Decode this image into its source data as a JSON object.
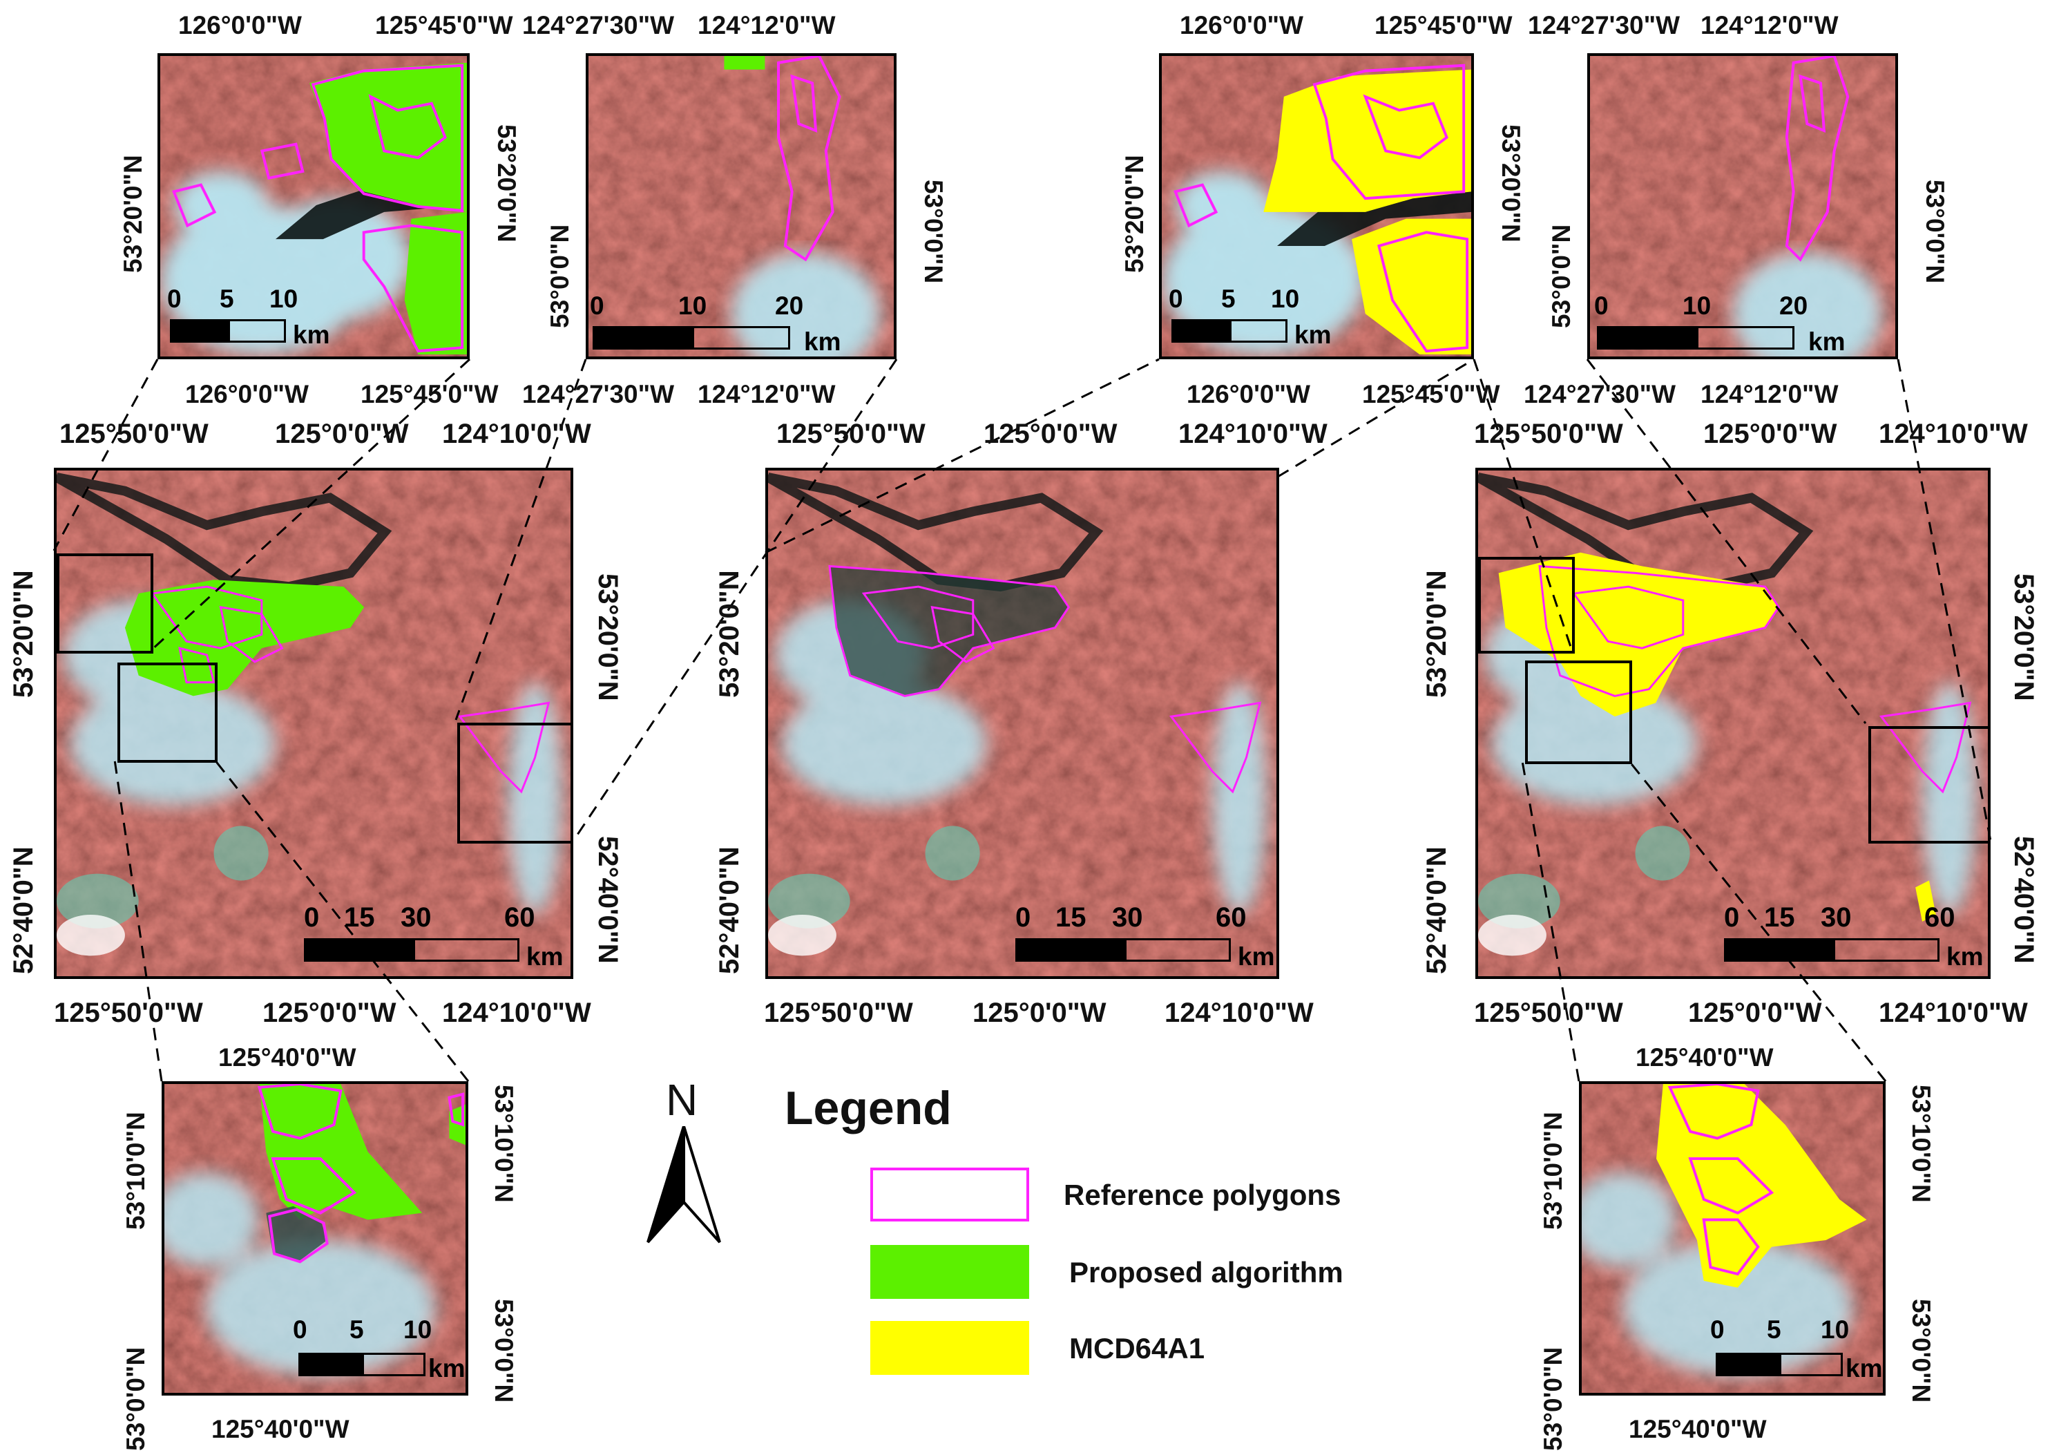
{
  "colors": {
    "reference": "#ff22ff",
    "proposed": "#5cf000",
    "mcd64a1": "#ffff00",
    "terrain": "#8a3a32",
    "smoke": "#aee3ef",
    "water": "#0b1414"
  },
  "legend": {
    "title": "Legend",
    "items": [
      {
        "label": "Reference polygons",
        "swatch": "outline"
      },
      {
        "label": "Proposed algorithm",
        "swatch": "fill-green"
      },
      {
        "label": "MCD64A1",
        "swatch": "fill-yellow"
      }
    ]
  },
  "north_arrow": {
    "label": "N"
  },
  "units": "km",
  "insets": {
    "top_left_a": {
      "top": [
        "126°0'0\"W",
        "125°45'0\"W"
      ],
      "bottom": [
        "126°0'0\"W",
        "125°45'0\"W"
      ],
      "left": "53°20'0\"N",
      "right": "53°20'0\"N",
      "scale": [
        "0",
        "5",
        "10"
      ]
    },
    "top_left_b": {
      "top": [
        "124°27'30\"W",
        "124°12'0\"W"
      ],
      "bottom": [
        "124°27'30\"W",
        "124°12'0\"W"
      ],
      "left": "53°0'0\"N",
      "right": "53°0'0\"N",
      "scale": [
        "0",
        "10",
        "20"
      ]
    },
    "top_right_a": {
      "top": [
        "126°0'0\"W",
        "125°45'0\"W"
      ],
      "bottom": [
        "126°0'0\"W",
        "125°45'0\"W"
      ],
      "left": "53°20'0\"N",
      "right": "53°20'0\"N",
      "scale": [
        "0",
        "5",
        "10"
      ]
    },
    "top_right_b": {
      "top": [
        "124°27'30\"W",
        "124°12'0\"W"
      ],
      "bottom": [
        "124°27'30\"W",
        "124°12'0\"W"
      ],
      "left": "53°0'0\"N",
      "right": "53°0'0\"N",
      "scale": [
        "0",
        "10",
        "20"
      ]
    },
    "bottom_left": {
      "top": "125°40'0\"W",
      "bottom": "125°40'0\"W",
      "left": [
        "53°10'0\"N",
        "53°0'0\"N"
      ],
      "right": [
        "53°10'0\"N",
        "53°0'0\"N"
      ],
      "scale": [
        "0",
        "5",
        "10"
      ]
    },
    "bottom_right": {
      "top": "125°40'0\"W",
      "bottom": "125°40'0\"W",
      "left": [
        "53°10'0\"N",
        "53°0'0\"N"
      ],
      "right": [
        "53°10'0\"N",
        "53°0'0\"N"
      ],
      "scale": [
        "0",
        "5",
        "10"
      ]
    }
  },
  "main_maps": {
    "top": [
      "125°50'0\"W",
      "125°0'0\"W",
      "124°10'0\"W"
    ],
    "bottom": [
      "125°50'0\"W",
      "125°0'0\"W",
      "124°10'0\"W"
    ],
    "left": [
      "53°20'0\"N",
      "52°40'0\"N"
    ],
    "right": [
      "53°20'0\"N",
      "52°40'0\"N"
    ],
    "scale": [
      "0",
      "15",
      "30",
      "60"
    ]
  }
}
